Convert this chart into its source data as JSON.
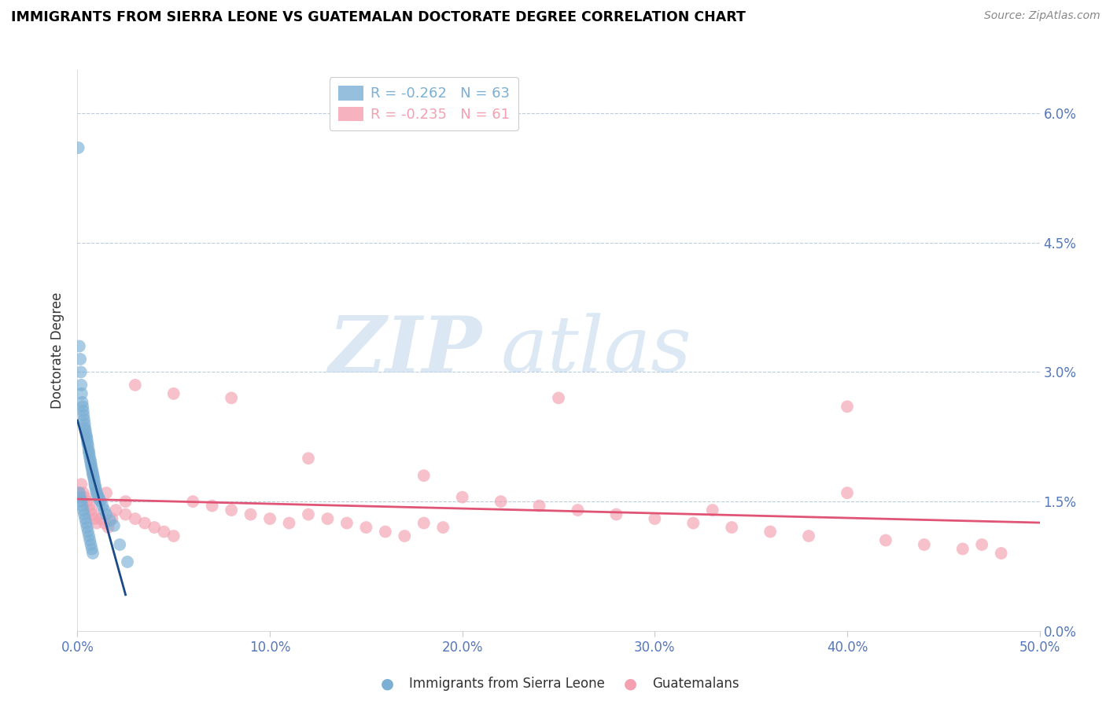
{
  "title": "IMMIGRANTS FROM SIERRA LEONE VS GUATEMALAN DOCTORATE DEGREE CORRELATION CHART",
  "source": "Source: ZipAtlas.com",
  "ylabel": "Doctorate Degree",
  "xlim": [
    0.0,
    50.0
  ],
  "ylim": [
    0.0,
    6.5
  ],
  "yticks": [
    0.0,
    1.5,
    3.0,
    4.5,
    6.0
  ],
  "xticks": [
    0.0,
    10.0,
    20.0,
    30.0,
    40.0,
    50.0
  ],
  "blue_color": "#7BAFD4",
  "pink_color": "#F4A0B0",
  "blue_line_color": "#1A4A8A",
  "pink_line_color": "#E05575",
  "blue_label": "Immigrants from Sierra Leone",
  "pink_label": "Guatemalans",
  "blue_R": -0.262,
  "blue_N": 63,
  "pink_R": -0.235,
  "pink_N": 61,
  "watermark_zip": "ZIP",
  "watermark_atlas": "atlas",
  "blue_x": [
    0.05,
    0.1,
    0.15,
    0.18,
    0.2,
    0.22,
    0.25,
    0.28,
    0.3,
    0.32,
    0.35,
    0.38,
    0.4,
    0.42,
    0.45,
    0.48,
    0.5,
    0.52,
    0.55,
    0.58,
    0.6,
    0.62,
    0.65,
    0.68,
    0.7,
    0.72,
    0.75,
    0.78,
    0.8,
    0.82,
    0.85,
    0.88,
    0.9,
    0.92,
    0.95,
    0.98,
    1.0,
    1.05,
    1.1,
    1.15,
    1.2,
    1.3,
    1.4,
    1.5,
    1.7,
    1.9,
    2.2,
    2.6,
    0.1,
    0.15,
    0.2,
    0.25,
    0.3,
    0.35,
    0.4,
    0.45,
    0.5,
    0.55,
    0.6,
    0.65,
    0.7,
    0.75,
    0.8
  ],
  "blue_y": [
    5.6,
    3.3,
    3.15,
    3.0,
    2.85,
    2.75,
    2.65,
    2.6,
    2.55,
    2.5,
    2.45,
    2.4,
    2.35,
    2.32,
    2.28,
    2.25,
    2.22,
    2.18,
    2.15,
    2.1,
    2.07,
    2.04,
    2.0,
    1.97,
    1.94,
    1.91,
    1.88,
    1.85,
    1.82,
    1.8,
    1.77,
    1.74,
    1.7,
    1.68,
    1.65,
    1.62,
    1.6,
    1.57,
    1.55,
    1.52,
    1.5,
    1.45,
    1.4,
    1.35,
    1.28,
    1.22,
    1.0,
    0.8,
    1.6,
    1.55,
    1.5,
    1.45,
    1.4,
    1.35,
    1.3,
    1.25,
    1.2,
    1.15,
    1.1,
    1.05,
    1.0,
    0.95,
    0.9
  ],
  "pink_x": [
    0.1,
    0.2,
    0.3,
    0.4,
    0.5,
    0.6,
    0.7,
    0.8,
    0.9,
    1.0,
    1.2,
    1.4,
    1.6,
    1.8,
    2.0,
    2.5,
    3.0,
    3.5,
    4.0,
    4.5,
    5.0,
    6.0,
    7.0,
    8.0,
    9.0,
    10.0,
    11.0,
    12.0,
    13.0,
    14.0,
    15.0,
    16.0,
    17.0,
    18.0,
    19.0,
    20.0,
    22.0,
    24.0,
    26.0,
    28.0,
    30.0,
    32.0,
    34.0,
    36.0,
    38.0,
    40.0,
    42.0,
    44.0,
    46.0,
    48.0,
    3.0,
    5.0,
    8.0,
    12.0,
    18.0,
    25.0,
    33.0,
    40.0,
    47.0,
    1.5,
    2.5
  ],
  "pink_y": [
    1.6,
    1.7,
    1.6,
    1.55,
    1.5,
    1.45,
    1.4,
    1.35,
    1.3,
    1.25,
    1.3,
    1.25,
    1.2,
    1.3,
    1.4,
    1.35,
    1.3,
    1.25,
    1.2,
    1.15,
    1.1,
    1.5,
    1.45,
    1.4,
    1.35,
    1.3,
    1.25,
    1.35,
    1.3,
    1.25,
    1.2,
    1.15,
    1.1,
    1.25,
    1.2,
    1.55,
    1.5,
    1.45,
    1.4,
    1.35,
    1.3,
    1.25,
    1.2,
    1.15,
    1.1,
    1.6,
    1.05,
    1.0,
    0.95,
    0.9,
    2.85,
    2.75,
    2.7,
    2.0,
    1.8,
    2.7,
    1.4,
    2.6,
    1.0,
    1.6,
    1.5
  ]
}
